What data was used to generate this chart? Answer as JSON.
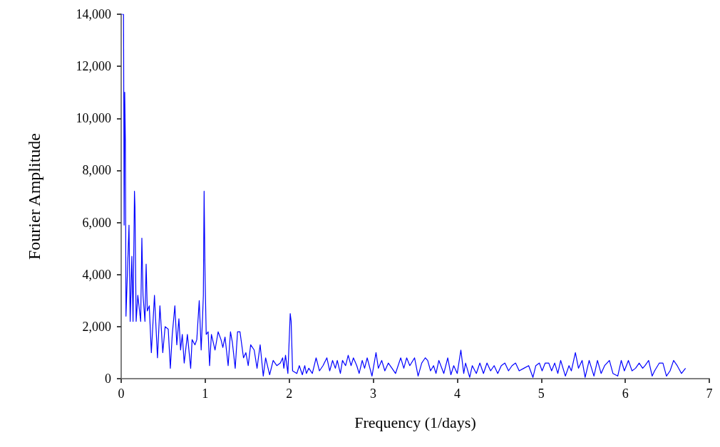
{
  "chart_data": {
    "type": "line",
    "xlabel": "Frequency (1/days)",
    "ylabel": "Fourier Amplitude",
    "xlim": [
      0,
      7
    ],
    "xticks": [
      0,
      1,
      2,
      3,
      4,
      5,
      6,
      7
    ],
    "ylim": [
      0,
      14000
    ],
    "yticks": [
      0,
      {
        "value": 2000,
        "label": "2,000"
      },
      {
        "value": 4000,
        "label": "4,000"
      },
      {
        "value": 6000,
        "label": "6,000"
      },
      {
        "value": 8000,
        "label": "8,000"
      },
      {
        "value": 10000,
        "label": "10,000"
      },
      {
        "value": 12000,
        "label": "12,000"
      },
      {
        "value": 14000,
        "label": "14,000"
      }
    ],
    "marker": "none",
    "series": [
      {
        "color": "#0000ff",
        "x": [
          0.0,
          0.028,
          0.035,
          0.042,
          0.05,
          0.057,
          0.093,
          0.107,
          0.127,
          0.141,
          0.158,
          0.164,
          0.178,
          0.198,
          0.232,
          0.246,
          0.26,
          0.283,
          0.297,
          0.311,
          0.334,
          0.359,
          0.396,
          0.432,
          0.461,
          0.495,
          0.523,
          0.56,
          0.585,
          0.608,
          0.639,
          0.662,
          0.687,
          0.707,
          0.727,
          0.75,
          0.788,
          0.827,
          0.844,
          0.878,
          0.9,
          0.929,
          0.952,
          0.969,
          0.978,
          0.987,
          0.998,
          1.012,
          1.035,
          1.052,
          1.074,
          1.117,
          1.154,
          1.188,
          1.21,
          1.236,
          1.273,
          1.301,
          1.323,
          1.357,
          1.385,
          1.414,
          1.456,
          1.484,
          1.512,
          1.541,
          1.583,
          1.617,
          1.654,
          1.691,
          1.719,
          1.767,
          1.809,
          1.852,
          1.894,
          1.922,
          1.936,
          1.956,
          1.984,
          2.012,
          2.023,
          2.04,
          2.091,
          2.12,
          2.156,
          2.185,
          2.204,
          2.233,
          2.275,
          2.32,
          2.36,
          2.402,
          2.448,
          2.482,
          2.516,
          2.549,
          2.572,
          2.609,
          2.634,
          2.671,
          2.702,
          2.736,
          2.764,
          2.804,
          2.832,
          2.869,
          2.897,
          2.928,
          2.985,
          3.033,
          3.061,
          3.101,
          3.138,
          3.18,
          3.223,
          3.265,
          3.327,
          3.364,
          3.398,
          3.435,
          3.492,
          3.534,
          3.577,
          3.619,
          3.648,
          3.682,
          3.718,
          3.747,
          3.781,
          3.84,
          3.887,
          3.924,
          3.958,
          4.0,
          4.043,
          4.077,
          4.099,
          4.148,
          4.179,
          4.227,
          4.269,
          4.312,
          4.354,
          4.397,
          4.439,
          4.482,
          4.524,
          4.567,
          4.61,
          4.652,
          4.694,
          4.737,
          4.793,
          4.85,
          4.901,
          4.935,
          4.977,
          5.01,
          5.047,
          5.089,
          5.123,
          5.16,
          5.197,
          5.231,
          5.287,
          5.33,
          5.358,
          5.406,
          5.443,
          5.486,
          5.522,
          5.57,
          5.627,
          5.669,
          5.712,
          5.754,
          5.811,
          5.853,
          5.91,
          5.952,
          5.989,
          6.037,
          6.08,
          6.122,
          6.165,
          6.207,
          6.235,
          6.278,
          6.32,
          6.349,
          6.405,
          6.448,
          6.49,
          6.533,
          6.575,
          6.618,
          6.669,
          6.717
        ],
        "values": [
          14000,
          14000,
          5900,
          11000,
          9100,
          2400,
          5900,
          2200,
          4700,
          2200,
          7200,
          6600,
          2200,
          3200,
          2200,
          5400,
          3200,
          2200,
          4400,
          2600,
          2800,
          1000,
          3200,
          800,
          2800,
          1000,
          2000,
          1900,
          400,
          1700,
          2800,
          1300,
          2300,
          1100,
          1700,
          600,
          1700,
          400,
          1500,
          1300,
          1500,
          3000,
          1100,
          2400,
          3200,
          7200,
          4000,
          1700,
          1800,
          500,
          1700,
          1100,
          1800,
          1500,
          1200,
          1600,
          500,
          1800,
          1400,
          400,
          1800,
          1800,
          800,
          1000,
          500,
          1300,
          1100,
          400,
          1300,
          100,
          800,
          150,
          700,
          500,
          600,
          800,
          400,
          900,
          200,
          2500,
          2200,
          300,
          200,
          500,
          150,
          500,
          200,
          400,
          200,
          800,
          300,
          500,
          800,
          300,
          700,
          400,
          700,
          200,
          700,
          500,
          900,
          500,
          800,
          500,
          200,
          700,
          400,
          800,
          100,
          1000,
          400,
          700,
          300,
          600,
          400,
          200,
          800,
          400,
          800,
          500,
          800,
          100,
          600,
          800,
          700,
          300,
          500,
          200,
          700,
          200,
          800,
          150,
          500,
          200,
          1100,
          200,
          600,
          50,
          500,
          200,
          600,
          200,
          600,
          300,
          500,
          200,
          500,
          600,
          300,
          500,
          600,
          300,
          400,
          500,
          50,
          500,
          600,
          300,
          600,
          600,
          300,
          600,
          200,
          700,
          100,
          500,
          300,
          1000,
          400,
          700,
          50,
          700,
          100,
          700,
          200,
          500,
          700,
          200,
          100,
          700,
          300,
          700,
          300,
          400,
          600,
          400,
          500,
          700,
          100,
          300,
          600,
          600,
          100,
          300,
          700,
          500,
          200,
          400
        ]
      }
    ]
  }
}
